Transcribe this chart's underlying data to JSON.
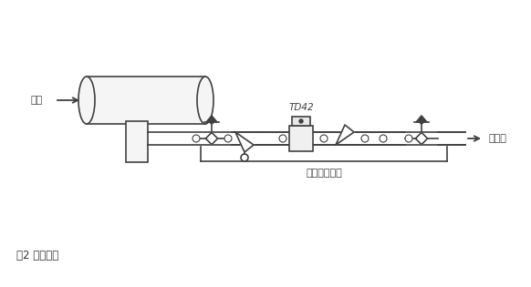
{
  "title": "图2 典型应用",
  "label_steam": "蒸汽",
  "label_condensate": "冷凝水",
  "label_group": "蒸汽疏水阀组",
  "label_td42": "TD42",
  "bg_color": "#ffffff",
  "line_color": "#404040",
  "text_color": "#404040",
  "title_color": "#333333",
  "figsize": [
    5.82,
    3.15
  ],
  "dpi": 100
}
